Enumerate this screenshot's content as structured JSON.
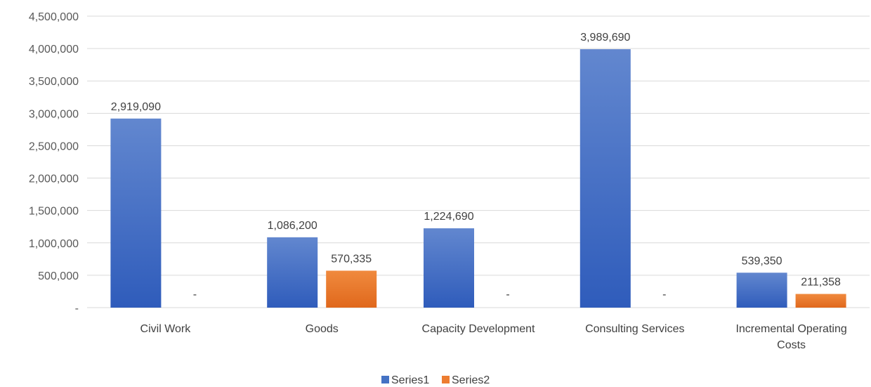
{
  "chart_data": {
    "type": "bar",
    "categories": [
      "Civil Work",
      "Goods",
      "Capacity Development",
      "Consulting Services",
      "Incremental Operating Costs"
    ],
    "category_lines": [
      [
        "Civil Work"
      ],
      [
        "Goods"
      ],
      [
        "Capacity Development"
      ],
      [
        "Consulting Services"
      ],
      [
        "Incremental Operating",
        "Costs"
      ]
    ],
    "series": [
      {
        "name": "Series1",
        "values": [
          2919090,
          1086200,
          1224690,
          3989690,
          539350
        ],
        "labels": [
          "2,919,090",
          "1,086,200",
          "1,224,690",
          "3,989,690",
          "539,350"
        ],
        "color": "#4472c4"
      },
      {
        "name": "Series2",
        "values": [
          0,
          570335,
          0,
          0,
          211358
        ],
        "labels": [
          "-",
          "570,335",
          "-",
          "-",
          "211,358"
        ],
        "color": "#ed7d31"
      }
    ],
    "yticks": [
      0,
      500000,
      1000000,
      1500000,
      2000000,
      2500000,
      3000000,
      3500000,
      4000000,
      4500000
    ],
    "yticklabels": [
      "-",
      "500,000",
      "1,000,000",
      "1,500,000",
      "2,000,000",
      "2,500,000",
      "3,000,000",
      "3,500,000",
      "4,000,000",
      "4,500,000"
    ],
    "ylim": [
      0,
      4500000
    ],
    "grid": true,
    "legend_position": "bottom",
    "title": "",
    "xlabel": "",
    "ylabel": ""
  }
}
